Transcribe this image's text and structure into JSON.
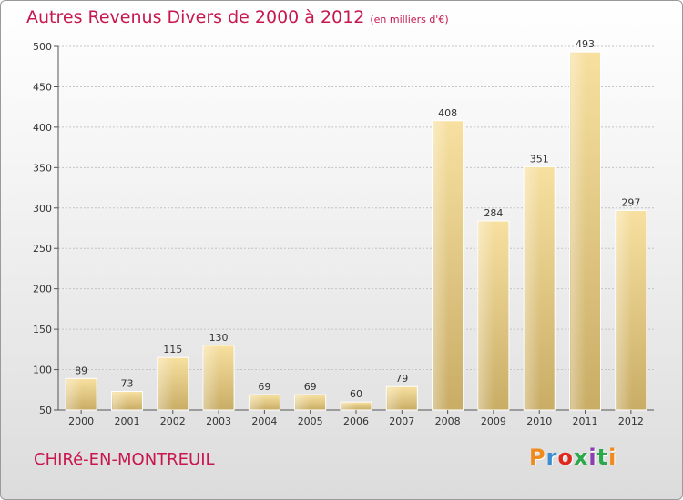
{
  "header": {
    "title": "Autres Revenus Divers de 2000 à 2012",
    "unit": "(en milliers d'€)"
  },
  "footer": {
    "commune": "CHIRé-EN-MONTREUIL",
    "logo": "Proxiti",
    "logo_colors": [
      "#f08a1c",
      "#3a8dd0",
      "#e0281c",
      "#2aa84a",
      "#8a3fb0",
      "#2aa84a",
      "#f08a1c"
    ]
  },
  "chart_data": {
    "type": "bar",
    "title": "Autres Revenus Divers de 2000 à 2012",
    "subtitle": "(en milliers d'€)",
    "categories": [
      "2000",
      "2001",
      "2002",
      "2003",
      "2004",
      "2005",
      "2006",
      "2007",
      "2008",
      "2009",
      "2010",
      "2011",
      "2012"
    ],
    "values": [
      89,
      73,
      115,
      130,
      69,
      69,
      60,
      79,
      408,
      284,
      351,
      493,
      297
    ],
    "ylim": [
      50,
      500
    ],
    "yticks": [
      50,
      100,
      150,
      200,
      250,
      300,
      350,
      400,
      450,
      500
    ],
    "grid": true,
    "xlabel": "",
    "ylabel": "",
    "bar_color": "#e8cf8a"
  }
}
